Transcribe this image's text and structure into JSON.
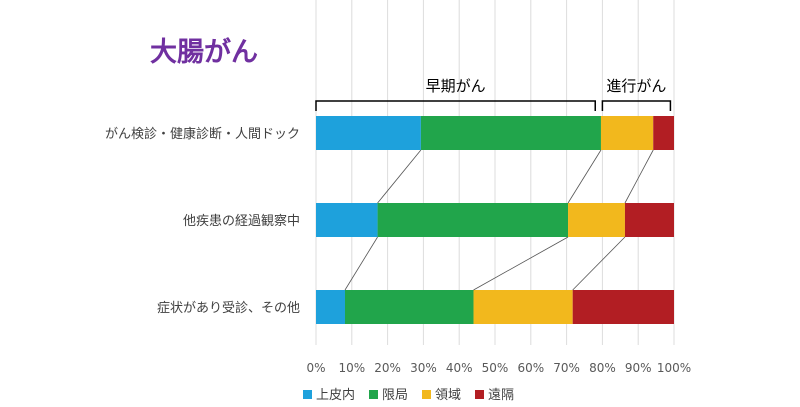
{
  "title": "大腸がん",
  "chart_data": {
    "type": "bar",
    "orientation": "horizontal",
    "stacked": true,
    "percent": true,
    "categories": [
      "がん検診・健康診断・人間ドック",
      "他疾患の経過観察中",
      "症状があり受診、その他"
    ],
    "series": [
      {
        "name": "上皮内",
        "color": "#1ea1dc",
        "values": [
          29.3,
          17.2,
          8.1
        ]
      },
      {
        "name": "限局",
        "color": "#21a54b",
        "values": [
          50.3,
          53.2,
          35.9
        ]
      },
      {
        "name": "領域",
        "color": "#f2b81d",
        "values": [
          14.6,
          15.9,
          27.7
        ]
      },
      {
        "name": "遠隔",
        "color": "#b21e23",
        "values": [
          5.8,
          13.7,
          28.3
        ]
      }
    ],
    "xlim": [
      0,
      100
    ],
    "xticks": [
      "0%",
      "10%",
      "20%",
      "30%",
      "40%",
      "50%",
      "60%",
      "70%",
      "80%",
      "90%",
      "100%"
    ],
    "grid": true,
    "legend": "bottom",
    "annotations": [
      {
        "label": "早期がん",
        "from": 0,
        "to": 78
      },
      {
        "label": "進行がん",
        "from": 80,
        "to": 99
      }
    ]
  }
}
